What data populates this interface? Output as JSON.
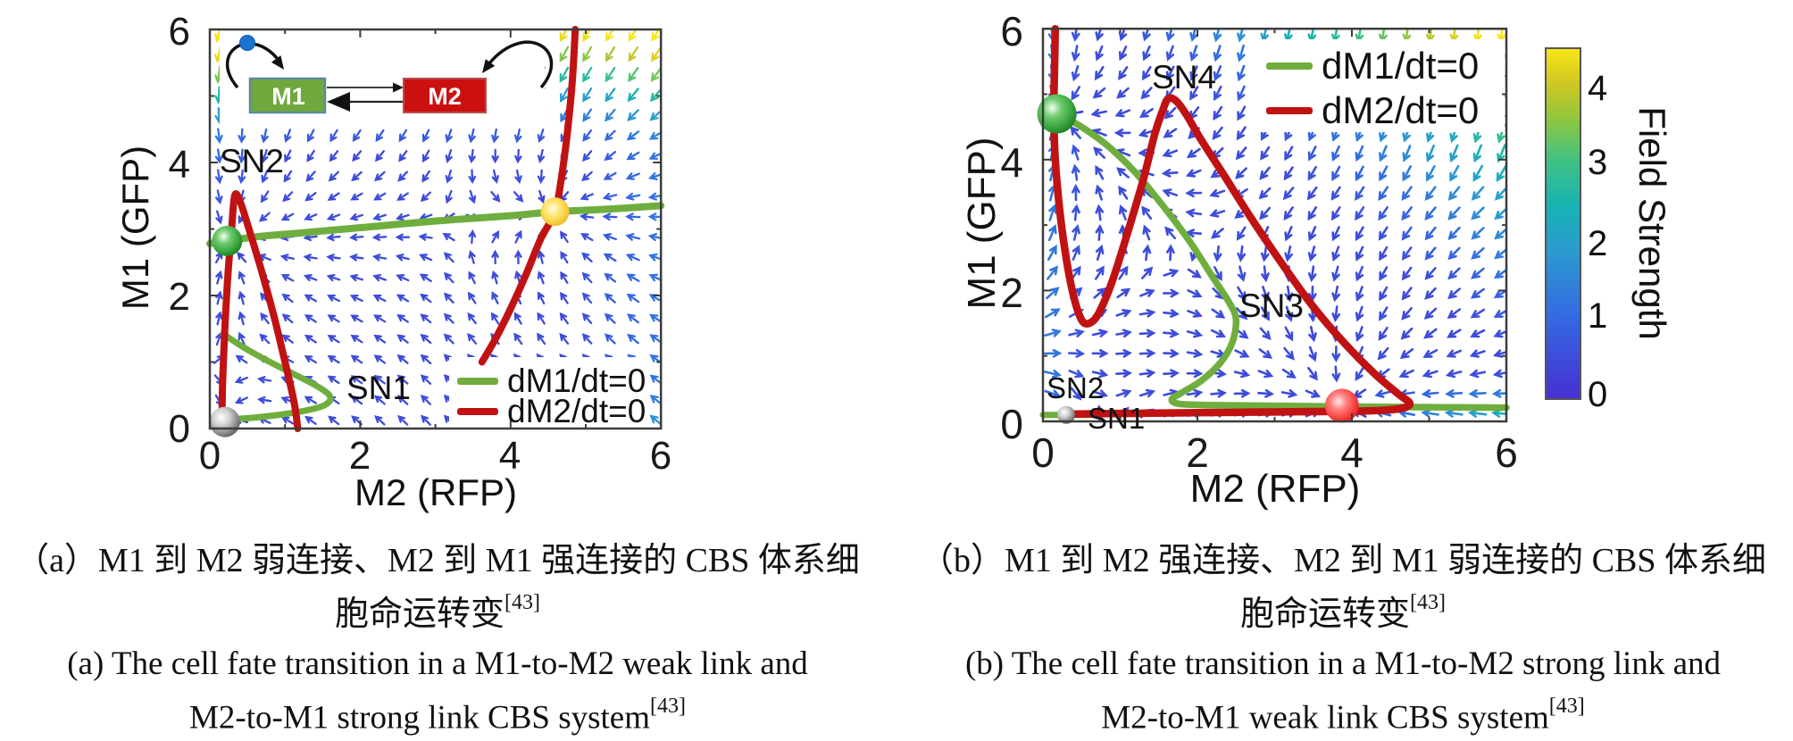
{
  "chart_data": [
    {
      "type": "line",
      "panel": "a",
      "title": "",
      "xlabel": "M2 (RFP)",
      "ylabel": "M1 (GFP)",
      "xlim": [
        0,
        6
      ],
      "ylim": [
        0,
        6
      ],
      "xticks": [
        "0",
        "2",
        "4",
        "6"
      ],
      "yticks": [
        "6",
        "4",
        "2",
        "0"
      ],
      "legend_position": "bottom-right-inside",
      "legend": [
        {
          "label": "dM1/dt=0",
          "color": "#6fae3e"
        },
        {
          "label": "dM2/dt=0",
          "color": "#c01212"
        }
      ],
      "nullclines": [
        {
          "series": "dM1/dt=0",
          "color": "#6fae3e",
          "width": 8,
          "points": [
            [
              0,
              2.78
            ],
            [
              0.6,
              2.88
            ],
            [
              1.2,
              2.94
            ],
            [
              2.0,
              3.02
            ],
            [
              3.0,
              3.12
            ],
            [
              4.0,
              3.2
            ],
            [
              4.59,
              3.26
            ],
            [
              5.3,
              3.3
            ],
            [
              6,
              3.35
            ]
          ]
        },
        {
          "series": "dM1/dt=0",
          "color": "#6fae3e",
          "width": 7,
          "points": [
            [
              0.18,
              1.42
            ],
            [
              0.45,
              1.22
            ],
            [
              0.8,
              1.0
            ],
            [
              1.15,
              0.8
            ],
            [
              1.45,
              0.62
            ],
            [
              1.6,
              0.48
            ],
            [
              1.54,
              0.36
            ],
            [
              1.32,
              0.28
            ],
            [
              0.95,
              0.21
            ],
            [
              0.55,
              0.16
            ],
            [
              0.1,
              0.13
            ]
          ]
        },
        {
          "series": "dM2/dt=0",
          "color": "#c01212",
          "width": 8,
          "points": [
            [
              0.16,
              0
            ],
            [
              0.17,
              0.7
            ],
            [
              0.2,
              1.5
            ],
            [
              0.24,
              2.3
            ],
            [
              0.29,
              3.0
            ],
            [
              0.33,
              3.5
            ],
            [
              0.4,
              3.42
            ],
            [
              0.52,
              3.0
            ],
            [
              0.68,
              2.4
            ],
            [
              0.85,
              1.7
            ],
            [
              1.0,
              1.0
            ],
            [
              1.12,
              0.4
            ],
            [
              1.17,
              0
            ]
          ]
        },
        {
          "series": "dM2/dt=0",
          "color": "#c01212",
          "width": 8,
          "points": [
            [
              3.62,
              1.0
            ],
            [
              3.8,
              1.35
            ],
            [
              4.0,
              1.8
            ],
            [
              4.2,
              2.3
            ],
            [
              4.4,
              2.85
            ],
            [
              4.59,
              3.26
            ],
            [
              4.68,
              3.8
            ],
            [
              4.75,
              4.4
            ],
            [
              4.82,
              5.2
            ],
            [
              4.86,
              6.0
            ]
          ]
        }
      ],
      "fixed_points": [
        {
          "id": "stable-green",
          "x": 0.23,
          "y": 2.82,
          "r": 17,
          "fill": "green"
        },
        {
          "id": "stable-gray",
          "x": 0.2,
          "y": 0.1,
          "r": 17,
          "fill": "gray"
        },
        {
          "id": "stable-yellow",
          "x": 4.59,
          "y": 3.26,
          "r": 16,
          "fill": "yellow"
        }
      ],
      "annotations": [
        {
          "text": "SN2"
        },
        {
          "text": "SN1"
        }
      ],
      "inset": {
        "nodes": [
          "M1",
          "M2"
        ],
        "link_m1_to_m2": "weak",
        "link_m2_to_m1": "strong"
      }
    },
    {
      "type": "line",
      "panel": "b",
      "title": "",
      "xlabel": "M2 (RFP)",
      "ylabel": "M1 (GFP)",
      "xlim": [
        0,
        6
      ],
      "ylim": [
        0,
        6
      ],
      "xticks": [
        "0",
        "2",
        "4",
        "6"
      ],
      "yticks": [
        "6",
        "4",
        "2",
        "0"
      ],
      "legend_position": "top-right-inside",
      "legend": [
        {
          "label": "dM1/dt=0",
          "color": "#6fae3e"
        },
        {
          "label": "dM2/dt=0",
          "color": "#c01212"
        }
      ],
      "nullclines": [
        {
          "series": "dM1/dt=0",
          "color": "#6fae3e",
          "width": 7.5,
          "points": [
            [
              0,
              4.78
            ],
            [
              0.18,
              4.7
            ],
            [
              0.5,
              4.5
            ],
            [
              0.85,
              4.2
            ],
            [
              1.2,
              3.8
            ],
            [
              1.55,
              3.3
            ],
            [
              1.9,
              2.75
            ],
            [
              2.2,
              2.2
            ],
            [
              2.42,
              1.8
            ],
            [
              2.5,
              1.55
            ],
            [
              2.45,
              1.2
            ],
            [
              2.3,
              0.9
            ],
            [
              2.05,
              0.62
            ],
            [
              1.8,
              0.44
            ],
            [
              1.67,
              0.34
            ],
            [
              1.75,
              0.27
            ],
            [
              2.1,
              0.25
            ],
            [
              2.8,
              0.24
            ],
            [
              3.6,
              0.23
            ],
            [
              4.6,
              0.22
            ],
            [
              6,
              0.21
            ]
          ]
        },
        {
          "series": "dM1/dt=0",
          "color": "#6fae3e",
          "width": 7,
          "points": [
            [
              0,
              0.1
            ],
            [
              0.3,
              0.1
            ],
            [
              0.62,
              0.1
            ]
          ]
        },
        {
          "series": "dM2/dt=0",
          "color": "#c01212",
          "width": 8.5,
          "points": [
            [
              0.16,
              6
            ],
            [
              0.15,
              5.4
            ],
            [
              0.14,
              4.7
            ],
            [
              0.16,
              4.0
            ],
            [
              0.22,
              3.2
            ],
            [
              0.3,
              2.5
            ],
            [
              0.4,
              1.9
            ],
            [
              0.5,
              1.55
            ],
            [
              0.6,
              1.5
            ],
            [
              0.72,
              1.65
            ],
            [
              0.9,
              2.15
            ],
            [
              1.1,
              2.9
            ],
            [
              1.3,
              3.7
            ],
            [
              1.45,
              4.4
            ],
            [
              1.55,
              4.75
            ],
            [
              1.62,
              4.93
            ],
            [
              1.72,
              4.9
            ],
            [
              1.85,
              4.7
            ],
            [
              2.05,
              4.3
            ],
            [
              2.35,
              3.75
            ],
            [
              2.7,
              3.1
            ],
            [
              3.1,
              2.4
            ],
            [
              3.5,
              1.75
            ],
            [
              3.9,
              1.2
            ],
            [
              4.3,
              0.72
            ],
            [
              4.6,
              0.42
            ],
            [
              4.75,
              0.27
            ],
            [
              4.6,
              0.19
            ],
            [
              4.2,
              0.16
            ],
            [
              3.5,
              0.15
            ],
            [
              2.6,
              0.14
            ],
            [
              1.7,
              0.13
            ],
            [
              0.9,
              0.12
            ],
            [
              0.35,
              0.11
            ]
          ]
        }
      ],
      "fixed_points": [
        {
          "id": "stable-green",
          "x": 0.18,
          "y": 4.7,
          "r": 22,
          "fill": "green"
        },
        {
          "id": "stable-gray",
          "x": 0.3,
          "y": 0.1,
          "r": 10,
          "fill": "gray"
        },
        {
          "id": "stable-red",
          "x": 3.87,
          "y": 0.24,
          "r": 19,
          "fill": "red"
        }
      ],
      "annotations": [
        {
          "text": "SN4"
        },
        {
          "text": "SN3"
        },
        {
          "text": "SN2"
        },
        {
          "text": "SN1"
        }
      ]
    }
  ],
  "colorbar": {
    "label": "Field Strength",
    "ticks": [
      "4",
      "3",
      "2",
      "1",
      "0"
    ],
    "range": [
      0,
      4.4
    ],
    "gradient": [
      "#4631d1",
      "#3566e3",
      "#2b9ad0",
      "#17b3b3",
      "#3fc184",
      "#90c73e",
      "#cfc722",
      "#f8e518"
    ]
  },
  "captions": {
    "a": {
      "zh1": "（a）M1 到 M2 弱连接、M2 到 M1 强连接的 CBS 体系细",
      "zh2": "胞命运转变",
      "ref": "[43]",
      "en1": "(a) The cell fate transition in a M1-to-M2 weak link and",
      "en2": "M2-to-M1 strong link CBS system"
    },
    "b": {
      "zh1": "（b）M1 到 M2 强连接、M2 到 M1 弱连接的 CBS 体系细",
      "zh2": "胞命运转变",
      "ref": "[43]",
      "en1": "(b) The cell fate transition in a M1-to-M2 strong link and",
      "en2": "M2-to-M1 weak link CBS system"
    }
  }
}
